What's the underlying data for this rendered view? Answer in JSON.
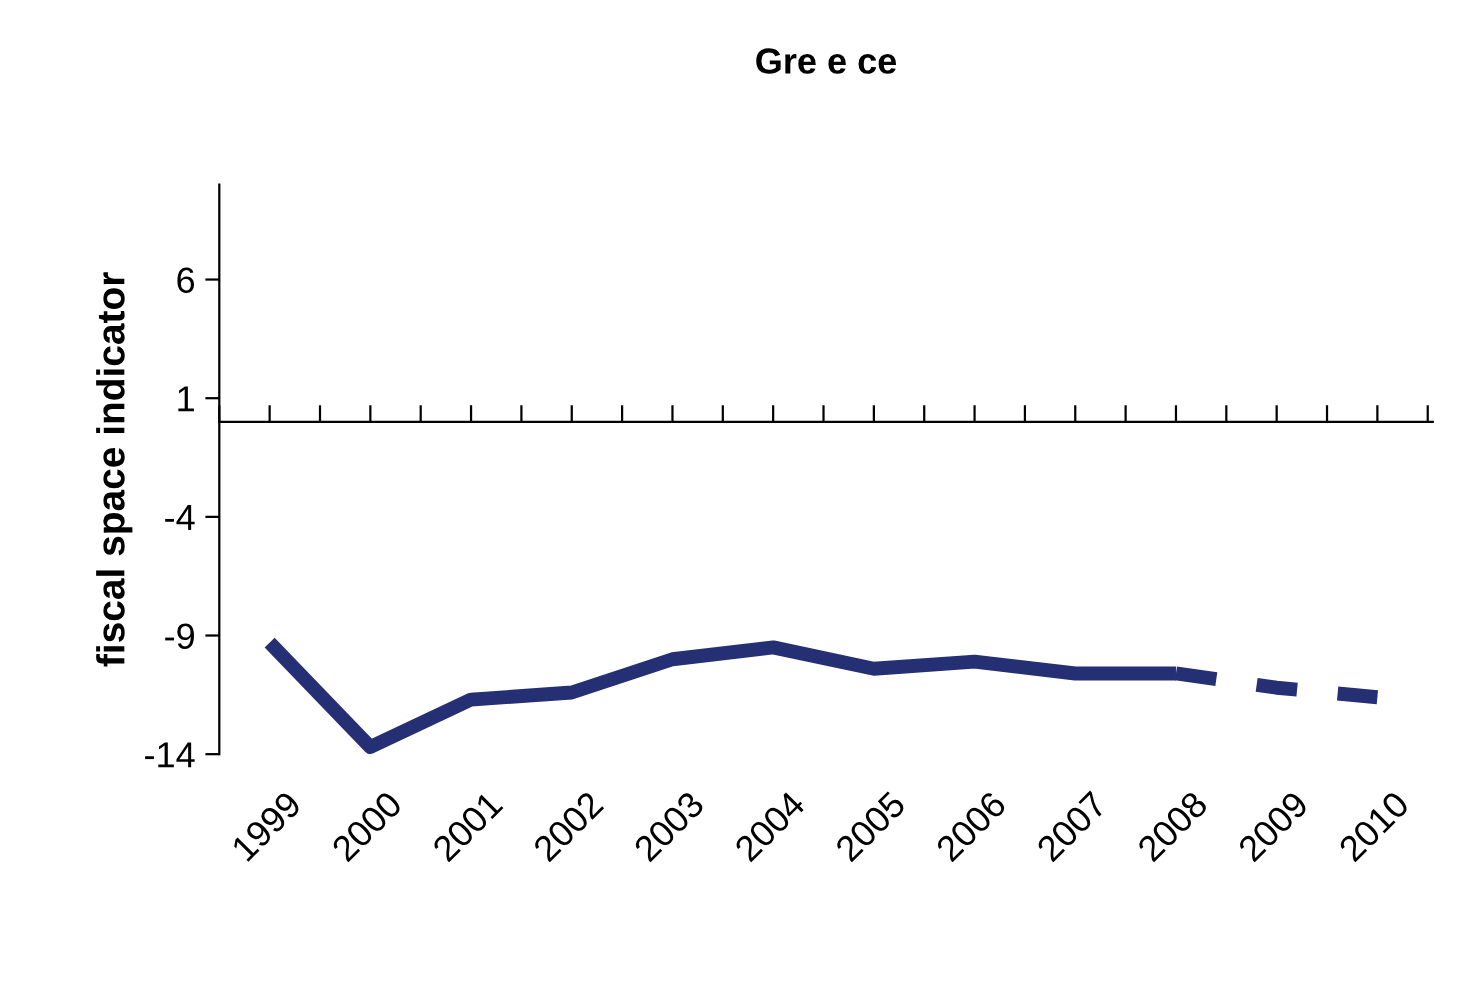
{
  "chart_data": {
    "type": "line",
    "title": "Gre e ce",
    "ylabel": "fiscal space indicator",
    "categories": [
      "1999",
      "2000",
      "2001",
      "2002",
      "2003",
      "2004",
      "2005",
      "2006",
      "2007",
      "2008",
      "2009",
      "2010"
    ],
    "series": [
      {
        "color": "#252f74",
        "line_style": "solid",
        "values": [
          -9.3,
          -13.7,
          -11.7,
          -11.4,
          -10.0,
          -9.5,
          -10.4,
          -10.1,
          -10.6,
          -10.6,
          null,
          null
        ]
      },
      {
        "color": "#252f74",
        "line_style": "dashed",
        "values": [
          null,
          null,
          null,
          null,
          null,
          null,
          null,
          null,
          null,
          -10.6,
          -11.2,
          -11.6
        ]
      }
    ],
    "ylim": [
      -14,
      10
    ],
    "yticks": [
      6,
      1,
      -4,
      -9,
      -14
    ],
    "grid": false,
    "legend": false,
    "marker": "none"
  }
}
